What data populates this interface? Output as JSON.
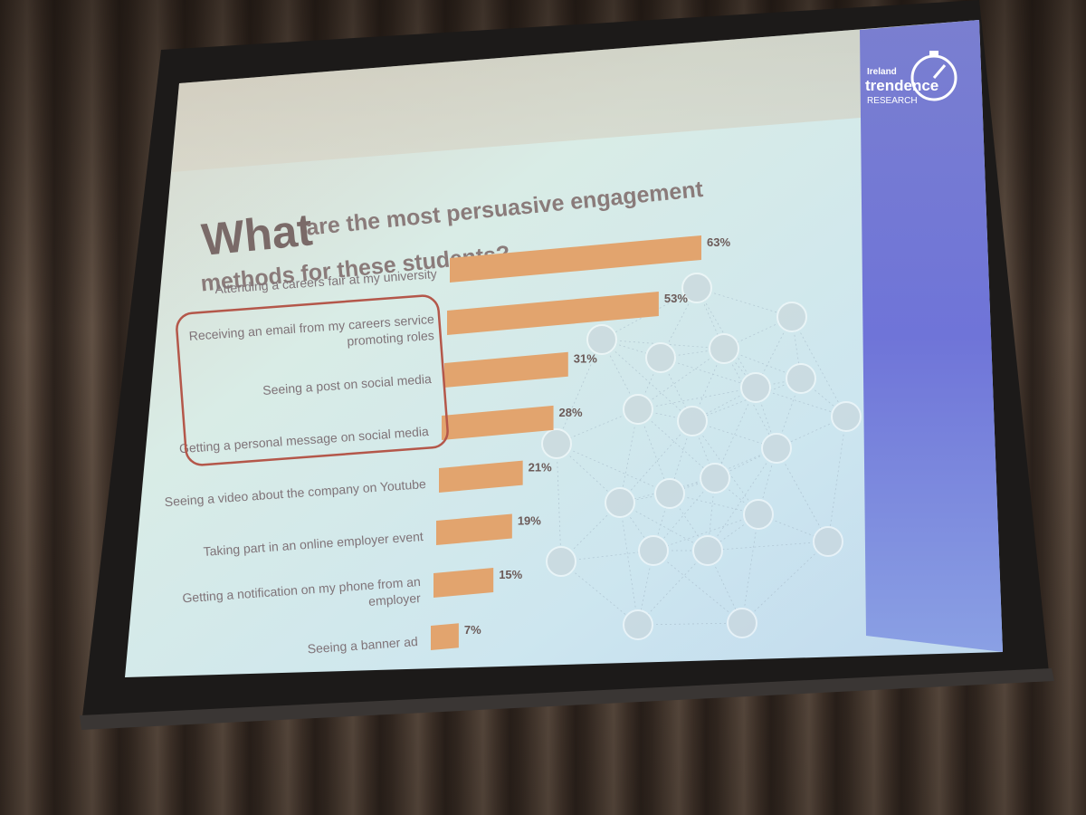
{
  "slide": {
    "title_word": "What",
    "title_rest_line1": "are the most persuasive engagement",
    "title_line2": "methods for these students?",
    "logo": {
      "country": "Ireland",
      "brand": "trendence",
      "sub": "RESEARCH"
    }
  },
  "colors": {
    "bar": "#e2a46e",
    "highlight_box": "#b4574a",
    "sidebar": "#6f78d6"
  },
  "chart_data": {
    "type": "bar",
    "orientation": "horizontal",
    "categories": [
      "Attending a careers fair at my university",
      "Receiving an email from my careers service promoting roles",
      "Seeing a post on social media",
      "Getting a personal message on social media",
      "Seeing a video about the company on Youtube",
      "Taking part in an online employer event",
      "Getting a notification on my phone from an employer",
      "Seeing a banner ad"
    ],
    "category_lines": [
      [
        "Attending a careers fair at my university"
      ],
      [
        "Receiving an email from my careers service",
        "promoting roles"
      ],
      [
        "Seeing a post on social media"
      ],
      [
        "Getting a personal message on social media"
      ],
      [
        "Seeing a video about the company on Youtube"
      ],
      [
        "Taking part in an online employer event"
      ],
      [
        "Getting a notification on my phone from an",
        "employer"
      ],
      [
        "Seeing a banner ad"
      ]
    ],
    "values": [
      63,
      53,
      31,
      28,
      21,
      19,
      15,
      7
    ],
    "value_labels": [
      "63%",
      "53%",
      "31%",
      "28%",
      "21%",
      "19%",
      "15%",
      "7%"
    ],
    "unit": "%",
    "highlighted_categories": [
      1,
      2,
      3
    ],
    "xlim": [
      0,
      63
    ]
  }
}
